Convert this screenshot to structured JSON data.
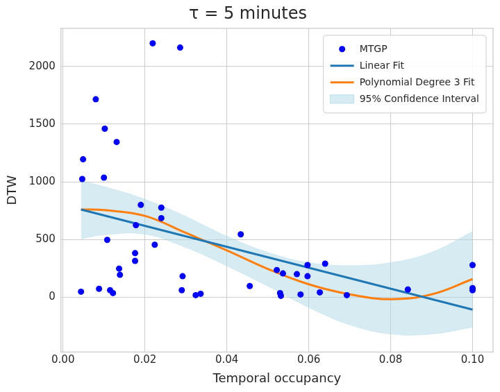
{
  "chart_data": {
    "type": "scatter",
    "title": "τ = 5 minutes",
    "x_label": "Temporal occupancy",
    "y_label": "DTW",
    "xlim": [
      -0.0005,
      0.105
    ],
    "ylim": [
      -475,
      2330
    ],
    "xticks": [
      {
        "value": 0,
        "label": "0.00"
      },
      {
        "value": 0.02,
        "label": "0.02"
      },
      {
        "value": 0.04,
        "label": "0.04"
      },
      {
        "value": 0.06,
        "label": "0.06"
      },
      {
        "value": 0.08,
        "label": "0.08"
      },
      {
        "value": 0.1,
        "label": "0.10"
      }
    ],
    "yticks": [
      0,
      500,
      1000,
      1500,
      2000
    ],
    "grid": true,
    "legend": "upper right",
    "series": [
      {
        "name": "MTGP",
        "type": "scatter",
        "marker": "circle",
        "color": "#0000ff",
        "x": [
          0.0219,
          0.0286,
          0.008,
          0.0102,
          0.0131,
          0.0049,
          0.0047,
          0.01,
          0.019,
          0.024,
          0.024,
          0.0178,
          0.0434,
          0.0108,
          0.0224,
          0.0176,
          0.0176,
          0.0137,
          0.0139,
          0.0292,
          0.0044,
          0.0088,
          0.0115,
          0.0122,
          0.029,
          0.0324,
          0.0336,
          0.0456,
          0.0522,
          0.0537,
          0.053,
          0.0532,
          0.0571,
          0.0597,
          0.0597,
          0.058,
          0.0627,
          0.064,
          0.0693,
          0.0842,
          0.1,
          0.1,
          0.1
        ],
        "values": [
          2200,
          2163,
          1715,
          1460,
          1345,
          1195,
          1024,
          1036,
          800,
          776,
          685,
          624,
          545,
          497,
          455,
          382,
          315,
          248,
          194,
          182,
          48,
          73,
          61,
          36,
          61,
          18,
          30,
          97,
          236,
          206,
          36,
          12,
          200,
          279,
          182,
          24,
          42,
          291,
          18,
          67,
          279,
          79,
          61
        ]
      },
      {
        "name": "Linear Fit",
        "type": "line",
        "line_style": "solid",
        "color": "#1f77b4",
        "x": [
          0.0044,
          0.1
        ],
        "values": [
          760,
          -107
        ]
      },
      {
        "name": "Polynomial Degree 3 Fit",
        "type": "line",
        "line_style": "solid",
        "color": "#ff7f0e",
        "x": [
          0.0044,
          0.01,
          0.02,
          0.03,
          0.04,
          0.05,
          0.06,
          0.07,
          0.08,
          0.09,
          0.1
        ],
        "values": [
          760,
          755,
          705,
          557,
          406,
          245,
          112,
          25,
          -17,
          25,
          157
        ]
      },
      {
        "name": "95% Confidence Interval",
        "type": "band",
        "color": "#add8e6",
        "x": [
          0.0044,
          0.01,
          0.02,
          0.03,
          0.04,
          0.05,
          0.06,
          0.07,
          0.08,
          0.09,
          0.1
        ],
        "upper": [
          1010,
          960,
          850,
          700,
          530,
          390,
          300,
          275,
          300,
          390,
          570
        ],
        "lower": [
          505,
          540,
          545,
          430,
          270,
          95,
          -90,
          -240,
          -320,
          -320,
          -260
        ]
      }
    ]
  }
}
